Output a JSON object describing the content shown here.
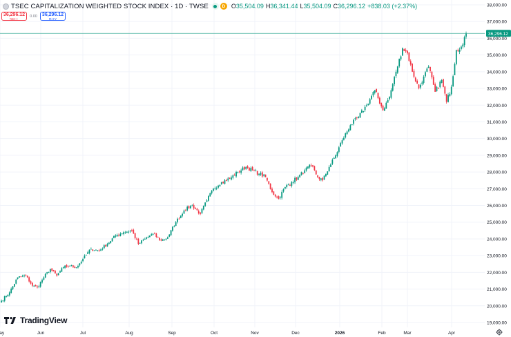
{
  "header": {
    "title": "TSEC CAPITALIZATION WEIGHTED STOCK INDEX · 1D · TWSE",
    "interval_badge": "D",
    "ohlc": [
      {
        "label": "O",
        "value": "35,504.09"
      },
      {
        "label": "H",
        "value": "36,341.44"
      },
      {
        "label": "L",
        "value": "35,504.09"
      },
      {
        "label": "C",
        "value": "36,296.12"
      }
    ],
    "change": "+838.03 (+2.37%)"
  },
  "trade": {
    "sell_price": "36,296.12",
    "sell_label": "SELL",
    "spread": "0.00",
    "buy_price": "36,296.12",
    "buy_label": "BUY"
  },
  "branding": {
    "name": "TradingView"
  },
  "colors": {
    "up": "#089981",
    "down": "#f23645",
    "grid": "#f0f3fa",
    "text": "#131722",
    "line": "#4cb5a0"
  },
  "chart_data": {
    "type": "candlestick",
    "title": "TSEC CAPITALIZATION WEIGHTED STOCK INDEX",
    "interval": "1D",
    "exchange": "TWSE",
    "ylim": [
      19000,
      38000
    ],
    "y_ticks": [
      "38,000.00",
      "37,000.00",
      "36,000.00",
      "35,000.00",
      "34,000.00",
      "33,000.00",
      "32,000.00",
      "31,000.00",
      "30,000.00",
      "29,000.00",
      "28,000.00",
      "27,000.00",
      "26,000.00",
      "25,000.00",
      "24,000.00",
      "23,000.00",
      "22,000.00",
      "21,000.00",
      "20,000.00",
      "19,000.00"
    ],
    "x_ticks": [
      "May",
      "Jun",
      "Jul",
      "Aug",
      "Sep",
      "Oct",
      "Nov",
      "Dec",
      "2026",
      "Feb",
      "Mar",
      "Apr"
    ],
    "last_price": 36296.12,
    "last_price_label": "36,296.12",
    "control_points": [
      [
        0,
        20300
      ],
      [
        5,
        20800
      ],
      [
        10,
        21700
      ],
      [
        15,
        21800
      ],
      [
        19,
        21200
      ],
      [
        22,
        21100
      ],
      [
        26,
        21700
      ],
      [
        30,
        22200
      ],
      [
        34,
        21800
      ],
      [
        38,
        22300
      ],
      [
        42,
        22400
      ],
      [
        46,
        22300
      ],
      [
        50,
        22800
      ],
      [
        55,
        23400
      ],
      [
        60,
        23300
      ],
      [
        65,
        23700
      ],
      [
        70,
        24200
      ],
      [
        75,
        24400
      ],
      [
        80,
        24500
      ],
      [
        84,
        23700
      ],
      [
        88,
        24000
      ],
      [
        93,
        24300
      ],
      [
        98,
        23900
      ],
      [
        102,
        24100
      ],
      [
        107,
        25000
      ],
      [
        112,
        25700
      ],
      [
        117,
        26000
      ],
      [
        122,
        25500
      ],
      [
        126,
        26300
      ],
      [
        130,
        27000
      ],
      [
        135,
        27400
      ],
      [
        140,
        27600
      ],
      [
        145,
        28000
      ],
      [
        150,
        28300
      ],
      [
        154,
        28100
      ],
      [
        158,
        27900
      ],
      [
        162,
        27700
      ],
      [
        166,
        26800
      ],
      [
        170,
        26400
      ],
      [
        174,
        27100
      ],
      [
        178,
        27400
      ],
      [
        182,
        27700
      ],
      [
        186,
        28100
      ],
      [
        190,
        28400
      ],
      [
        194,
        27700
      ],
      [
        197,
        27500
      ],
      [
        201,
        28300
      ],
      [
        205,
        29000
      ],
      [
        209,
        29900
      ],
      [
        214,
        30800
      ],
      [
        219,
        31300
      ],
      [
        224,
        32000
      ],
      [
        229,
        32900
      ],
      [
        234,
        31700
      ],
      [
        238,
        32500
      ],
      [
        242,
        34000
      ],
      [
        246,
        35400
      ],
      [
        249,
        35100
      ],
      [
        252,
        34000
      ],
      [
        256,
        33000
      ],
      [
        259,
        33700
      ],
      [
        262,
        34300
      ],
      [
        266,
        32800
      ],
      [
        270,
        33500
      ],
      [
        273,
        32200
      ],
      [
        276,
        33100
      ],
      [
        279,
        35300
      ],
      [
        282,
        35500
      ],
      [
        285,
        36296
      ]
    ]
  }
}
